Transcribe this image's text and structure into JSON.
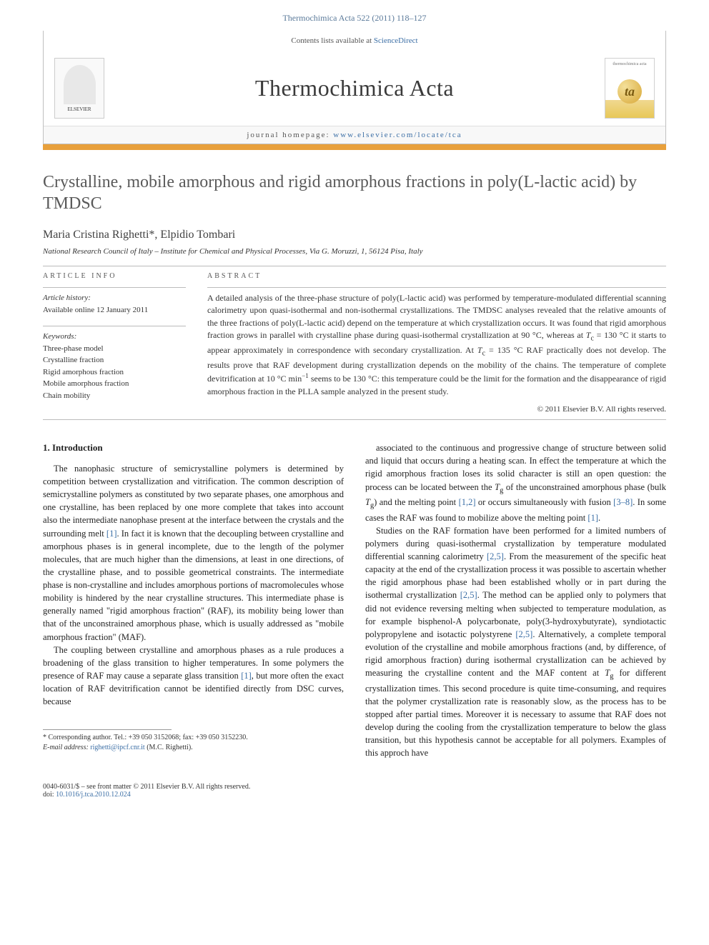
{
  "header": {
    "running_head": "Thermochimica Acta 522 (2011) 118–127"
  },
  "masthead": {
    "contents_line_prefix": "Contents lists available at ",
    "contents_link": "ScienceDirect",
    "journal_title": "Thermochimica Acta",
    "homepage_prefix": "journal homepage: ",
    "homepage_url": "www.elsevier.com/locate/tca",
    "publisher_logo_text": "ELSEVIER",
    "cover_small_text": "thermochimica acta",
    "cover_glyph": "ta"
  },
  "colors": {
    "accent_bar": "#e8a03c",
    "link": "#3b6ea5",
    "title_gray": "#5a5a5a",
    "text": "#333333"
  },
  "article": {
    "title": "Crystalline, mobile amorphous and rigid amorphous fractions in poly(L-lactic acid) by TMDSC",
    "authors": "Maria Cristina Righetti*, Elpidio Tombari",
    "affiliation": "National Research Council of Italy – Institute for Chemical and Physical Processes, Via G. Moruzzi, 1, 56124 Pisa, Italy"
  },
  "info": {
    "heading": "ARTICLE INFO",
    "history_label": "Article history:",
    "history_text": "Available online 12 January 2011",
    "keywords_label": "Keywords:",
    "keywords": [
      "Three-phase model",
      "Crystalline fraction",
      "Rigid amorphous fraction",
      "Mobile amorphous fraction",
      "Chain mobility"
    ]
  },
  "abstract": {
    "heading": "ABSTRACT",
    "text": "A detailed analysis of the three-phase structure of poly(L-lactic acid) was performed by temperature-modulated differential scanning calorimetry upon quasi-isothermal and non-isothermal crystallizations. The TMDSC analyses revealed that the relative amounts of the three fractions of poly(L-lactic acid) depend on the temperature at which crystallization occurs. It was found that rigid amorphous fraction grows in parallel with crystalline phase during quasi-isothermal crystallization at 90 °C, whereas at Tc = 130 °C it starts to appear approximately in correspondence with secondary crystallization. At Tc = 135 °C RAF practically does not develop. The results prove that RAF development during crystallization depends on the mobility of the chains. The temperature of complete devitrification at 10 °C min−1 seems to be 130 °C: this temperature could be the limit for the formation and the disappearance of rigid amorphous fraction in the PLLA sample analyzed in the present study.",
    "copyright": "© 2011 Elsevier B.V. All rights reserved."
  },
  "body": {
    "section_heading": "1. Introduction",
    "p1": "The nanophasic structure of semicrystalline polymers is determined by competition between crystallization and vitrification. The common description of semicrystalline polymers as constituted by two separate phases, one amorphous and one crystalline, has been replaced by one more complete that takes into account also the intermediate nanophase present at the interface between the crystals and the surrounding melt [1]. In fact it is known that the decoupling between crystalline and amorphous phases is in general incomplete, due to the length of the polymer molecules, that are much higher than the dimensions, at least in one directions, of the crystalline phase, and to possible geometrical constraints. The intermediate phase is non-crystalline and includes amorphous portions of macromolecules whose mobility is hindered by the near crystalline structures. This intermediate phase is generally named \"rigid amorphous fraction\" (RAF), its mobility being lower than that of the unconstrained amorphous phase, which is usually addressed as \"mobile amorphous fraction\" (MAF).",
    "p2": "The coupling between crystalline and amorphous phases as a rule produces a broadening of the glass transition to higher temperatures. In some polymers the presence of RAF may cause a separate glass transition [1], but more often the exact location of RAF devitrification cannot be identified directly from DSC curves, because",
    "p3": "associated to the continuous and progressive change of structure between solid and liquid that occurs during a heating scan. In effect the temperature at which the rigid amorphous fraction loses its solid character is still an open question: the process can be located between the Tg of the unconstrained amorphous phase (bulk Tg) and the melting point [1,2] or occurs simultaneously with fusion [3–8]. In some cases the RAF was found to mobilize above the melting point [1].",
    "p4": "Studies on the RAF formation have been performed for a limited numbers of polymers during quasi-isothermal crystallization by temperature modulated differential scanning calorimetry [2,5]. From the measurement of the specific heat capacity at the end of the crystallization process it was possible to ascertain whether the rigid amorphous phase had been established wholly or in part during the isothermal crystallization [2,5]. The method can be applied only to polymers that did not evidence reversing melting when subjected to temperature modulation, as for example bisphenol-A polycarbonate, poly(3-hydroxybutyrate), syndiotactic polypropylene and isotactic polystyrene [2,5]. Alternatively, a complete temporal evolution of the crystalline and mobile amorphous fractions (and, by difference, of rigid amorphous fraction) during isothermal crystallization can be achieved by measuring the crystalline content and the MAF content at Tg for different crystallization times. This second procedure is quite time-consuming, and requires that the polymer crystallization rate is reasonably slow, as the process has to be stopped after partial times. Moreover it is necessary to assume that RAF does not develop during the cooling from the crystallization temperature to below the glass transition, but this hypothesis cannot be acceptable for all polymers. Examples of this approch have"
  },
  "footnotes": {
    "corr_author": "* Corresponding author. Tel.: +39 050 3152068; fax: +39 050 3152230.",
    "email_label": "E-mail address: ",
    "email": "righetti@ipcf.cnr.it",
    "email_suffix": " (M.C. Righetti)."
  },
  "footer": {
    "left_line1": "0040-6031/$ – see front matter © 2011 Elsevier B.V. All rights reserved.",
    "left_line2_prefix": "doi:",
    "doi": "10.1016/j.tca.2010.12.024"
  }
}
